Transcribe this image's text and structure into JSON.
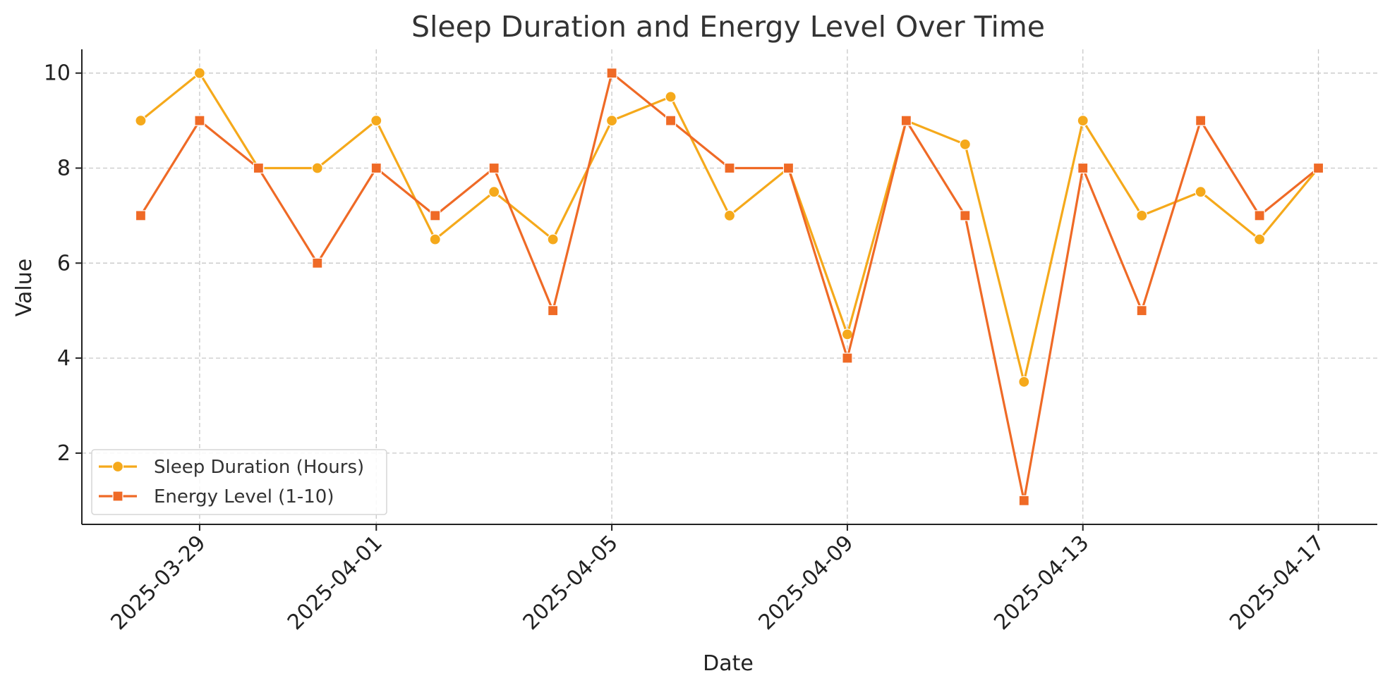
{
  "chart_data": {
    "type": "line",
    "title": "Sleep Duration and Energy Level Over Time",
    "xlabel": "Date",
    "ylabel": "Value",
    "x": [
      "2025-03-28",
      "2025-03-29",
      "2025-03-30",
      "2025-03-31",
      "2025-04-01",
      "2025-04-02",
      "2025-04-03",
      "2025-04-04",
      "2025-04-05",
      "2025-04-06",
      "2025-04-07",
      "2025-04-08",
      "2025-04-09",
      "2025-04-10",
      "2025-04-11",
      "2025-04-12",
      "2025-04-13",
      "2025-04-14",
      "2025-04-15",
      "2025-04-16",
      "2025-04-17"
    ],
    "x_ticks": [
      "2025-03-29",
      "2025-04-01",
      "2025-04-05",
      "2025-04-09",
      "2025-04-13",
      "2025-04-17"
    ],
    "xlim": [
      "2025-03-27",
      "2025-04-18"
    ],
    "ylim": [
      0.5,
      10.5
    ],
    "y_ticks": [
      2,
      4,
      6,
      8,
      10
    ],
    "grid": true,
    "legend_position": "lower-left",
    "series": [
      {
        "name": "Sleep Duration (Hours)",
        "color": "#F5A91B",
        "marker": "circle",
        "values": [
          9,
          10,
          8,
          8,
          9,
          6.5,
          7.5,
          6.5,
          9,
          9.5,
          7,
          8,
          4.5,
          9,
          8.5,
          3.5,
          9,
          7,
          7.5,
          6.5,
          8
        ]
      },
      {
        "name": "Energy Level (1-10)",
        "color": "#EF6A26",
        "marker": "square",
        "values": [
          7,
          9,
          8,
          6,
          8,
          7,
          8,
          5,
          10,
          9,
          8,
          8,
          4,
          9,
          7,
          1,
          8,
          5,
          9,
          7,
          8
        ]
      }
    ]
  }
}
